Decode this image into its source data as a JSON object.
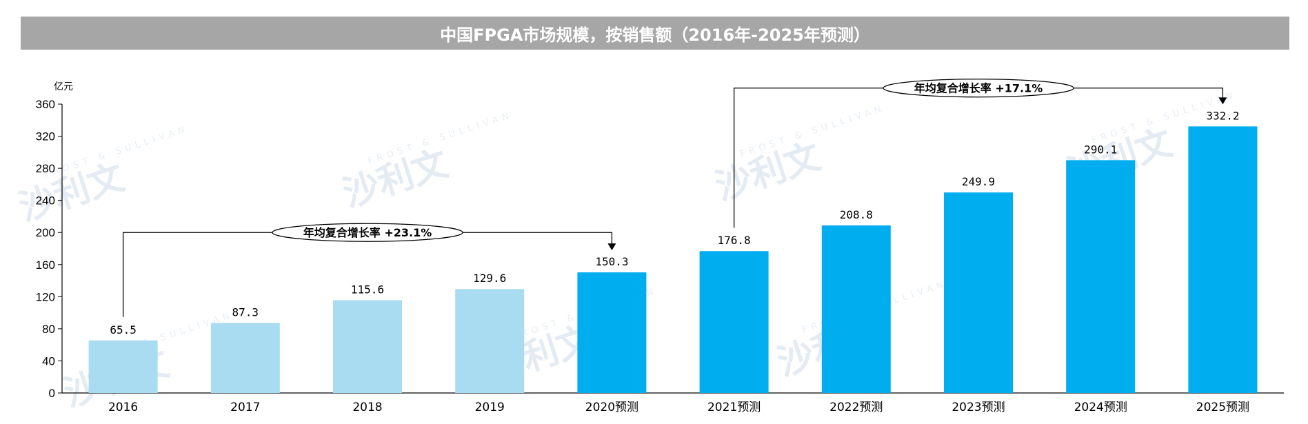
{
  "colors": {
    "historical": "#a9dcf0",
    "forecast": "#00aeef",
    "title_bg": "#a6a6a6"
  },
  "watermark": {
    "brand": "沙利文",
    "brand_en": "FROST & SULLIVAN"
  },
  "chart_data": {
    "type": "bar",
    "title": "中国FPGA市场规模，按销售额（2016年-2025年预测）",
    "ylabel": "亿元",
    "xlabel": "",
    "ylim": [
      0,
      360
    ],
    "yticks": [
      "0",
      "40",
      "80",
      "120",
      "160",
      "200",
      "240",
      "280",
      "320",
      "360"
    ],
    "grid": false,
    "categories": [
      "2016",
      "2017",
      "2018",
      "2019",
      "2020预测",
      "2021预测",
      "2022预测",
      "2023预测",
      "2024预测",
      "2025预测"
    ],
    "values": [
      65.5,
      87.3,
      115.6,
      129.6,
      150.3,
      176.8,
      208.8,
      249.9,
      290.1,
      332.2
    ],
    "data_labels": [
      "65.5",
      "87.3",
      "115.6",
      "129.6",
      "150.3",
      "176.8",
      "208.8",
      "249.9",
      "290.1",
      "332.2"
    ],
    "forecast_start_index": 4,
    "annotations": [
      {
        "text": "年均复合增长率 +23.1%",
        "from_index": 0,
        "to_index": 4,
        "level": 200
      },
      {
        "text": "年均复合增长率 +17.1%",
        "from_index": 5,
        "to_index": 9,
        "level": 380
      }
    ]
  }
}
